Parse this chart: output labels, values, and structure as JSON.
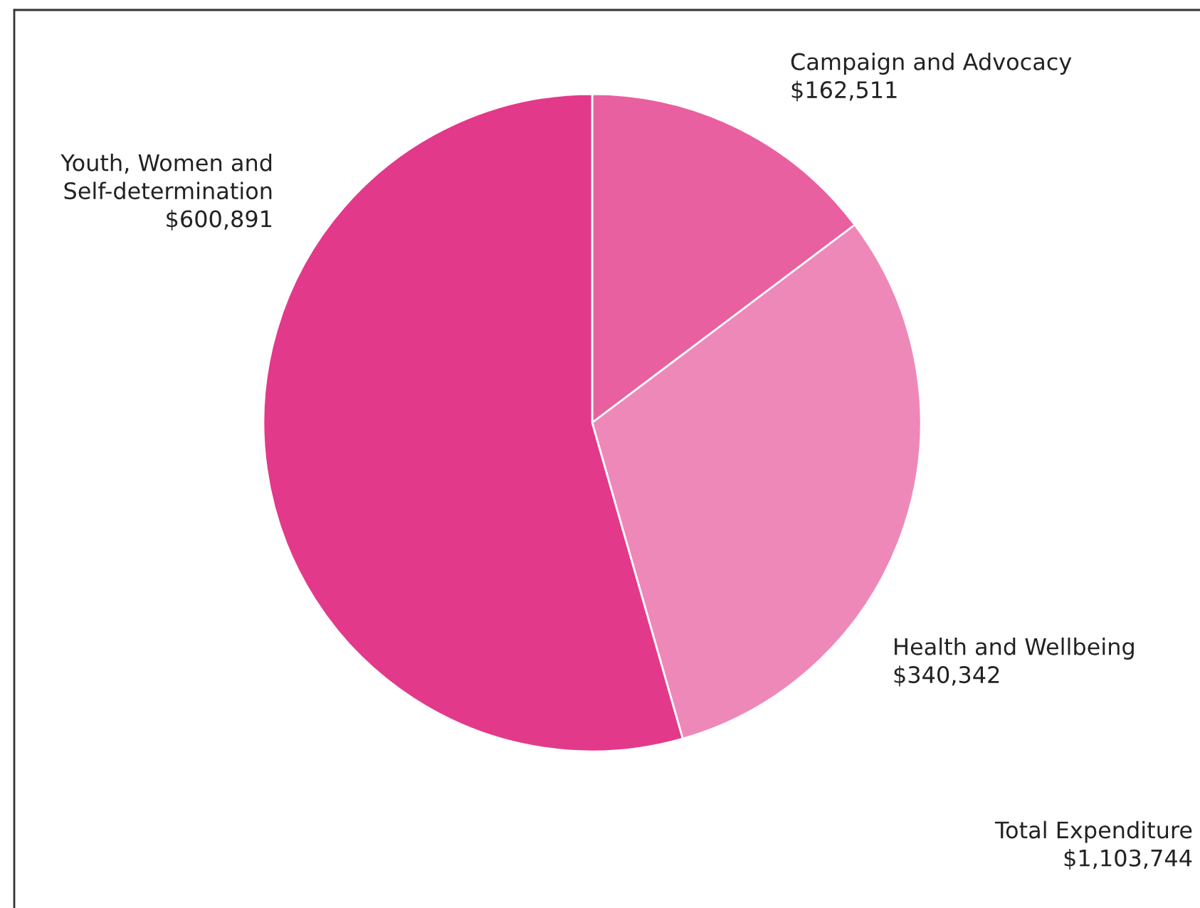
{
  "chart_data": {
    "type": "pie",
    "categories": [
      "Campaign and Advocacy",
      "Health and Wellbeing",
      "Youth, Women and Self-determination"
    ],
    "values": [
      162511,
      340342,
      600891
    ],
    "value_labels": [
      "$162,511",
      "$340,342",
      "$600,891"
    ],
    "colors": [
      "#e8609f",
      "#ee88b8",
      "#e3398a"
    ],
    "annotations": [
      "Total Expenditure\n$1,103,744"
    ],
    "legend": false
  }
}
